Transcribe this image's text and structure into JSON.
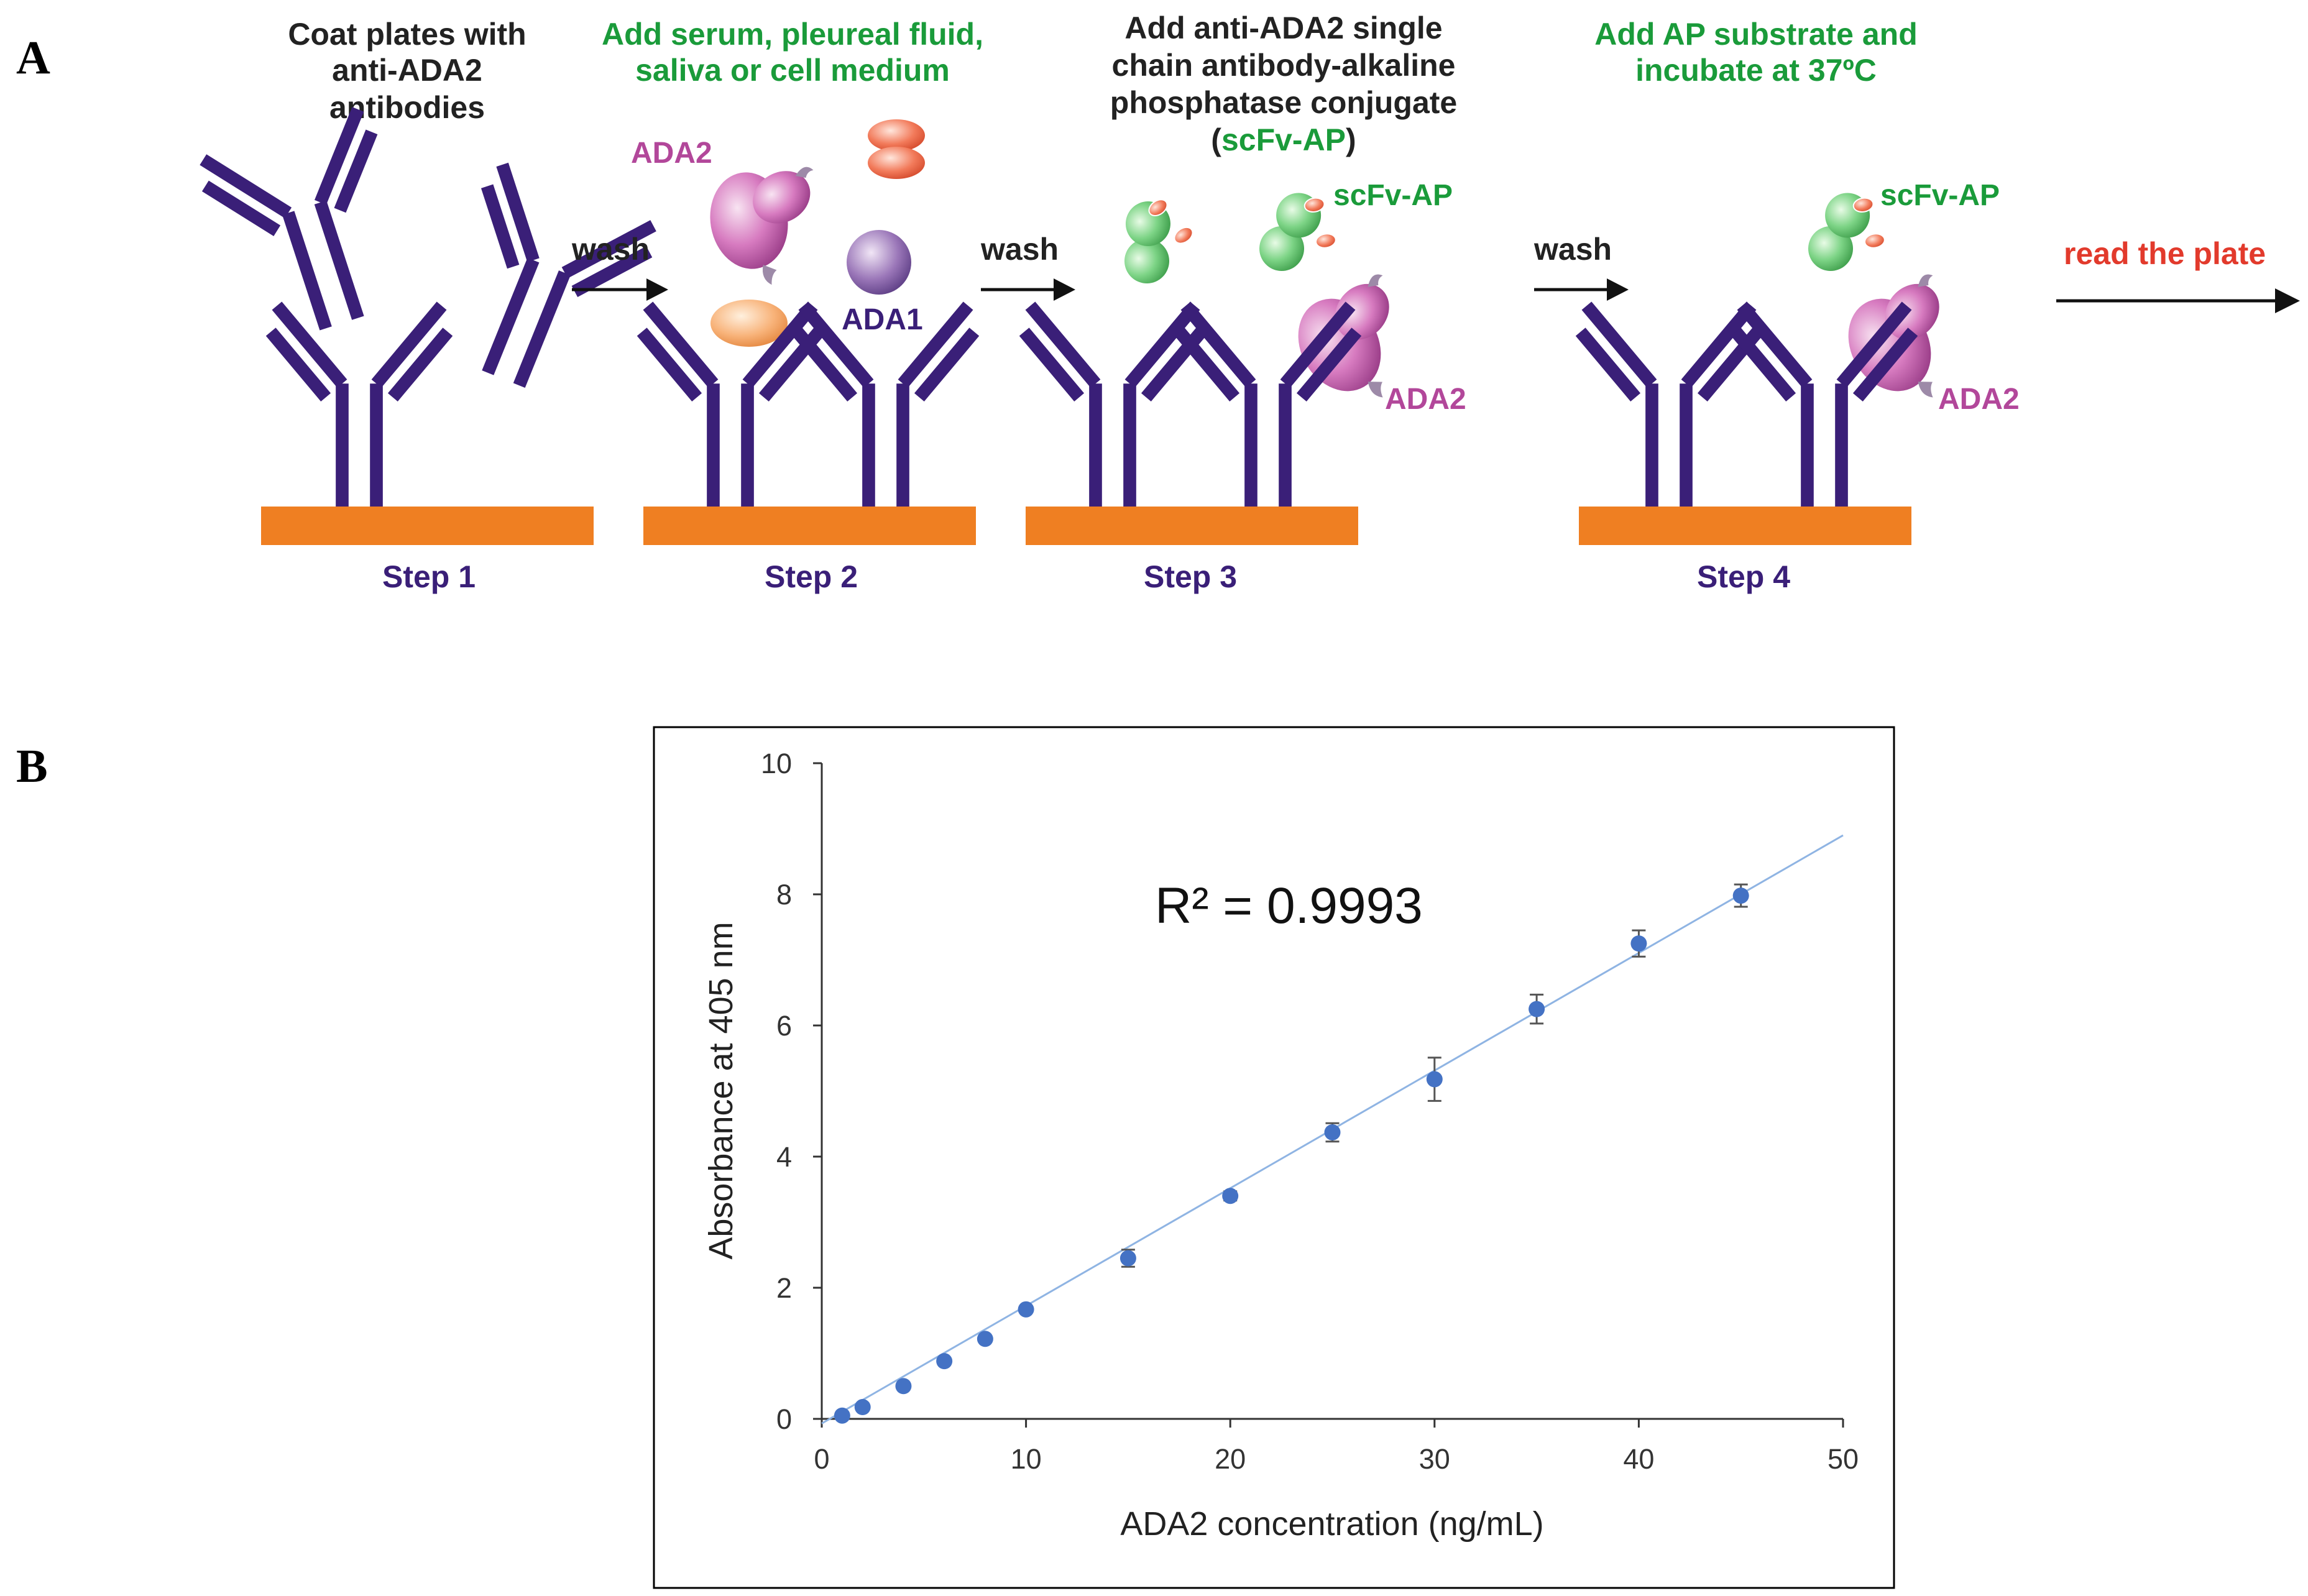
{
  "panels": {
    "a": "A",
    "b": "B"
  },
  "colors": {
    "antibody": "#3a1f78",
    "plate": "#ef7f22",
    "green_text": "#1a9b3a",
    "magenta_text": "#b2479a",
    "red_text": "#e23a2c",
    "data_point": "#4472c4",
    "fit_line": "#8fb4e3"
  },
  "step1": {
    "caption": [
      "Coat plates with",
      "anti-ADA2",
      "antibodies"
    ],
    "label": "Step 1"
  },
  "step2": {
    "caption": [
      "Add serum, pleureal fluid,",
      "saliva or cell medium"
    ],
    "ada2": "ADA2",
    "ada1": "ADA1",
    "label": "Step 2"
  },
  "step3": {
    "caption": [
      "Add anti-ADA2 single",
      "chain antibody-alkaline",
      "phosphatase conjugate"
    ],
    "caption_paren_open": "(",
    "caption_paren_term": "scFv-AP",
    "caption_paren_close": ")",
    "scfv": "scFv-AP",
    "ada2": "ADA2",
    "label": "Step 3"
  },
  "step4": {
    "caption": [
      "Add AP substrate and",
      "incubate at 37ºC"
    ],
    "scfv": "scFv-AP",
    "ada2": "ADA2",
    "label": "Step 4"
  },
  "arrows": {
    "wash": "wash",
    "read": "read the plate"
  },
  "chart_data": {
    "type": "scatter",
    "xlabel": "ADA2 concentration (ng/mL)",
    "ylabel": "Absorbance at 405 nm",
    "xlim": [
      0,
      50
    ],
    "ylim": [
      0,
      10
    ],
    "xticks": [
      0,
      10,
      20,
      30,
      40,
      50
    ],
    "yticks": [
      0,
      2,
      4,
      6,
      8,
      10
    ],
    "annotation": "R² = 0.9993",
    "grid": false,
    "points": [
      {
        "x": 1,
        "y": 0.05,
        "err": 0
      },
      {
        "x": 2,
        "y": 0.18,
        "err": 0
      },
      {
        "x": 4,
        "y": 0.5,
        "err": 0
      },
      {
        "x": 6,
        "y": 0.88,
        "err": 0
      },
      {
        "x": 8,
        "y": 1.22,
        "err": 0
      },
      {
        "x": 10,
        "y": 1.67,
        "err": 0
      },
      {
        "x": 15,
        "y": 2.45,
        "err": 0.13
      },
      {
        "x": 20,
        "y": 3.4,
        "err": 0.07
      },
      {
        "x": 25,
        "y": 4.37,
        "err": 0.14
      },
      {
        "x": 30,
        "y": 5.18,
        "err": 0.33
      },
      {
        "x": 35,
        "y": 6.25,
        "err": 0.22
      },
      {
        "x": 40,
        "y": 7.25,
        "err": 0.2
      },
      {
        "x": 45,
        "y": 7.98,
        "err": 0.17
      }
    ],
    "trendline": {
      "x0": 0,
      "y0": -0.07,
      "x1": 50,
      "y1": 8.9
    }
  }
}
